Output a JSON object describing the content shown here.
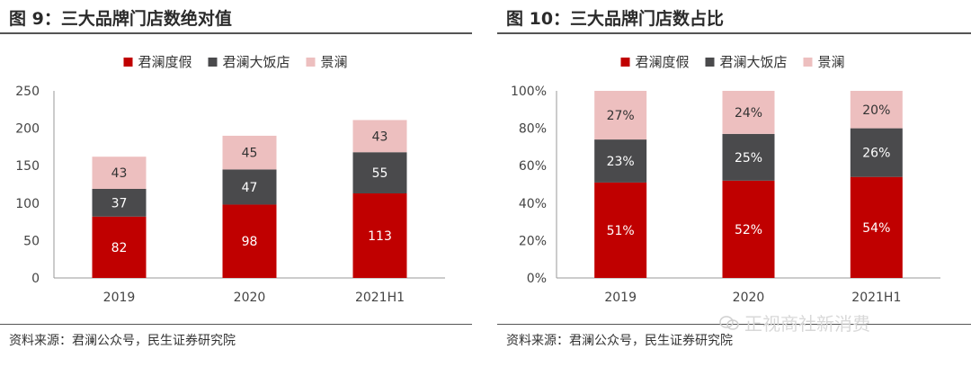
{
  "panels": [
    {
      "title": "图 9：三大品牌门店数绝对值",
      "source": "资料来源：君澜公众号，民生证券研究院"
    },
    {
      "title": "图 10：三大品牌门店数占比",
      "source": "资料来源：君澜公众号，民生证券研究院"
    }
  ],
  "watermark": {
    "text": "正视商社新消费",
    "icon": "wechat-icon"
  },
  "chart_data": [
    {
      "type": "bar",
      "stacked": true,
      "categories": [
        "2019",
        "2020",
        "2021H1"
      ],
      "series": [
        {
          "name": "君澜度假",
          "values": [
            82,
            98,
            113
          ],
          "color": "#c00000"
        },
        {
          "name": "君澜大饭店",
          "values": [
            37,
            47,
            55
          ],
          "color": "#4a4a4c"
        },
        {
          "name": "景澜",
          "values": [
            43,
            45,
            43
          ],
          "color": "#edbfbf"
        }
      ],
      "labels": [
        [
          "82",
          "98",
          "113"
        ],
        [
          "37",
          "47",
          "55"
        ],
        [
          "43",
          "45",
          "43"
        ]
      ],
      "ylim": [
        0,
        250
      ],
      "yticks": [
        "0",
        "50",
        "100",
        "150",
        "200",
        "250"
      ],
      "grid": false,
      "legend": "top-center"
    },
    {
      "type": "bar",
      "stacked": true,
      "categories": [
        "2019",
        "2020",
        "2021H1"
      ],
      "series": [
        {
          "name": "君澜度假",
          "values": [
            51,
            52,
            54
          ],
          "color": "#c00000"
        },
        {
          "name": "君澜大饭店",
          "values": [
            23,
            25,
            26
          ],
          "color": "#4a4a4c"
        },
        {
          "name": "景澜",
          "values": [
            27,
            24,
            20
          ],
          "color": "#edbfbf"
        }
      ],
      "labels": [
        [
          "51%",
          "52%",
          "54%"
        ],
        [
          "23%",
          "25%",
          "26%"
        ],
        [
          "27%",
          "24%",
          "20%"
        ]
      ],
      "ylim": [
        0,
        100
      ],
      "yticks": [
        "0%",
        "20%",
        "40%",
        "60%",
        "80%",
        "100%"
      ],
      "grid": false,
      "legend": "top-center"
    }
  ]
}
